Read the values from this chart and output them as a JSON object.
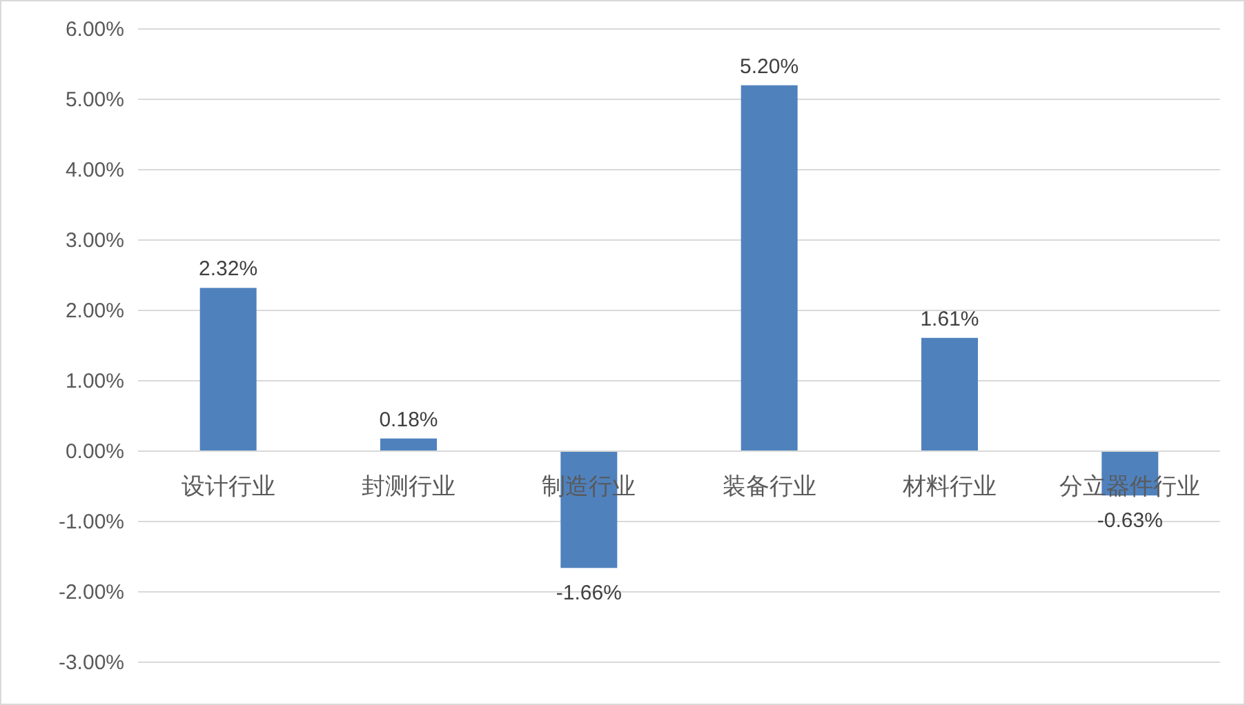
{
  "chart_data": {
    "type": "bar",
    "categories": [
      "设计行业",
      "封测行业",
      "制造行业",
      "装备行业",
      "材料行业",
      "分立器件行业"
    ],
    "values": [
      2.32,
      0.18,
      -1.66,
      5.2,
      1.61,
      -0.63
    ],
    "color": "#4f81bd",
    "value_labels": [
      "2.32%",
      "0.18%",
      "-1.66%",
      "5.20%",
      "1.61%",
      "-0.63%"
    ],
    "ylim": [
      -3,
      6
    ],
    "yticks": [
      {
        "value": -3,
        "label": "-3.00%"
      },
      {
        "value": -2,
        "label": "-2.00%"
      },
      {
        "value": -1,
        "label": "-1.00%"
      },
      {
        "value": 0,
        "label": "0.00%"
      },
      {
        "value": 1,
        "label": "1.00%"
      },
      {
        "value": 2,
        "label": "2.00%"
      },
      {
        "value": 3,
        "label": "3.00%"
      },
      {
        "value": 4,
        "label": "4.00%"
      },
      {
        "value": 5,
        "label": "5.00%"
      },
      {
        "value": 6,
        "label": "6.00%"
      }
    ],
    "grid": "y"
  }
}
